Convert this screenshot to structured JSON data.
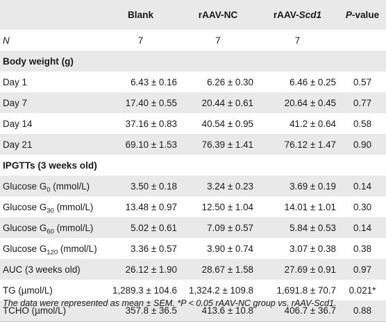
{
  "header": {
    "col0": "",
    "col1": "Blank",
    "col2_prefix": "rAAV-",
    "col2_suffix": "NC",
    "col3_prefix": "rAAV-",
    "col3_italic": "Scd1",
    "col4_italic": "P",
    "col4_suffix": "-value"
  },
  "n_row": {
    "label": "N",
    "blank": "7",
    "nc": "7",
    "scd1": "7",
    "p": ""
  },
  "body_weight": {
    "title": "Body weight (g)",
    "rows": [
      {
        "label": "Day 1",
        "blank": "6.43 ± 0.16",
        "nc": "6.26 ± 0.30",
        "scd1": "6.46 ± 0.25",
        "p": "0.57"
      },
      {
        "label": "Day 7",
        "blank": "17.40 ± 0.55",
        "nc": "20.44 ± 0.61",
        "scd1": "20.64 ± 0.45",
        "p": "0.77"
      },
      {
        "label": "Day 14",
        "blank": "37.16 ± 0.83",
        "nc": "40.54 ± 0.95",
        "scd1": "41.2 ± 0.64",
        "p": "0.58"
      },
      {
        "label": "Day 21",
        "blank": "69.10 ± 1.53",
        "nc": "76.39 ± 1.41",
        "scd1": "76.12 ± 1.47",
        "p": "0.90"
      }
    ]
  },
  "ipgtt": {
    "title": "IPGTTs (3 weeks old)",
    "rows": [
      {
        "label_pre": "Glucose G",
        "label_sub": "0",
        "label_post": " (mmol/L)",
        "blank": "3.50 ± 0.18",
        "nc": "3.24 ± 0.23",
        "scd1": "3.69 ± 0.19",
        "p": "0.14"
      },
      {
        "label_pre": "Glucose G",
        "label_sub": "30",
        "label_post": " (mmol/L)",
        "blank": "13.48 ± 0.97",
        "nc": "12.50 ± 1.04",
        "scd1": "14.01 ± 1.01",
        "p": "0.30"
      },
      {
        "label_pre": "Glucose G",
        "label_sub": "60",
        "label_post": " (mmol/L)",
        "blank": "5.02 ± 0.61",
        "nc": "7.09 ± 0.57",
        "scd1": "5.84 ± 0.53",
        "p": "0.14"
      },
      {
        "label_pre": "Glucose G",
        "label_sub": "120",
        "label_post": " (mmol/L)",
        "blank": "3.36 ± 0.57",
        "nc": "3.90 ± 0.74",
        "scd1": "3.07 ± 0.38",
        "p": "0.38"
      },
      {
        "label_pre": "AUC (3 weeks old)",
        "label_sub": "",
        "label_post": "",
        "blank": "26.12 ± 1.90",
        "nc": "28.67 ± 1.58",
        "scd1": "27.69 ± 0.91",
        "p": "0.97"
      },
      {
        "label_pre": "TG (µmol/L)",
        "label_sub": "",
        "label_post": "",
        "blank": "1,289.3 ± 104.6",
        "nc": "1,324.2 ± 109.8",
        "scd1": "1,691.8 ± 70.7",
        "p": "0.021*"
      },
      {
        "label_pre": "TCHO (µmol/L)",
        "label_sub": "",
        "label_post": "",
        "blank": "357.8 ± 36.5",
        "nc": "413.6 ± 10.8",
        "scd1": "406.7 ± 36.7",
        "p": "0.88"
      }
    ]
  },
  "footnote": "The data were represented as mean ± SEM. *P < 0.05 rAAV-NC group vs. rAAV-Scd1.",
  "colors": {
    "shade": "#e9e9e9",
    "text": "#1a1a1a"
  }
}
